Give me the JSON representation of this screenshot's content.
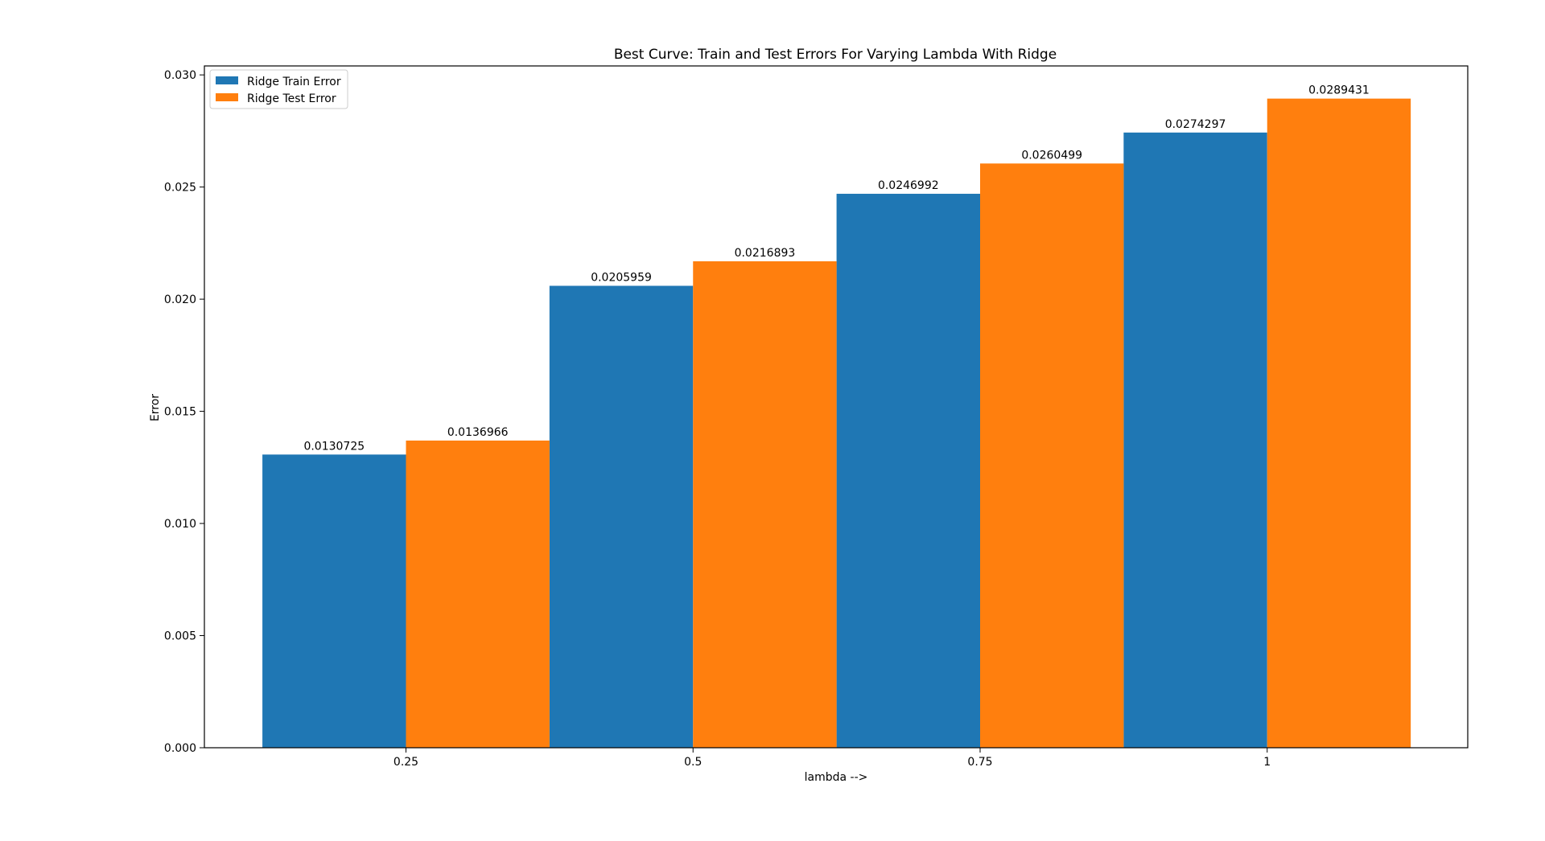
{
  "chart_data": {
    "type": "bar",
    "title": "Best Curve: Train and Test Errors For Varying Lambda With Ridge",
    "xlabel": "lambda -->",
    "ylabel": "Error",
    "categories": [
      "0.25",
      "0.5",
      "0.75",
      "1"
    ],
    "ylim": [
      0,
      0.0304
    ],
    "yticks": [
      "0.000",
      "0.005",
      "0.010",
      "0.015",
      "0.020",
      "0.025",
      "0.030"
    ],
    "ytick_values": [
      0,
      0.005,
      0.01,
      0.015,
      0.02,
      0.025,
      0.03
    ],
    "legend_position": "top-left",
    "grid": false,
    "series": [
      {
        "name": "Ridge Train Error",
        "color": "#1f77b4",
        "values": [
          0.0130725,
          0.0205959,
          0.0246992,
          0.0274297
        ],
        "labels": [
          "0.0130725",
          "0.0205959",
          "0.0246992",
          "0.0274297"
        ]
      },
      {
        "name": "Ridge Test Error",
        "color": "#ff7f0e",
        "values": [
          0.0136966,
          0.0216893,
          0.0260499,
          0.0289431
        ],
        "labels": [
          "0.0136966",
          "0.0216893",
          "0.0260499",
          "0.0289431"
        ]
      }
    ]
  }
}
